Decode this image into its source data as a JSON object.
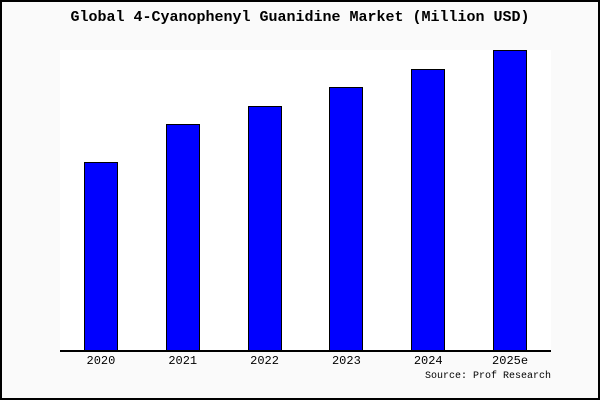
{
  "figure": {
    "title": "Global 4-Cyanophenyl Guanidine Market (Million USD)",
    "source": "Source: Prof Research",
    "background_color": "#fafafa",
    "plot_background_color": "#ffffff",
    "border_color": "#000000"
  },
  "chart_data": {
    "type": "bar",
    "title": "Global 4-Cyanophenyl Guanidine Market (Million USD)",
    "categories": [
      "2020",
      "2021",
      "2022",
      "2023",
      "2024",
      "2025e"
    ],
    "values": [
      62.7,
      75.2,
      81.5,
      87.7,
      93.7,
      100
    ],
    "unit": "Million USD",
    "ylim": [
      0,
      100
    ],
    "value_note": "no y-axis ticks or data labels shown; values estimated as percent of tallest bar (2025e = 100)",
    "xlabel": "",
    "ylabel": "",
    "legend": "none",
    "grid": false,
    "bar_color": "#0000ff",
    "bar_border_color": "#000000",
    "source": "Source: Prof Research"
  }
}
